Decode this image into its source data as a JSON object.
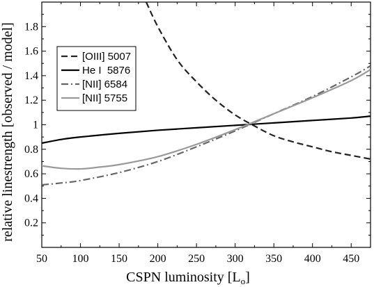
{
  "chart_data": {
    "type": "line",
    "title": "",
    "xlabel": "CSPN luminosity [L",
    "xlabel_sub": "o",
    "xlabel_end": "]",
    "ylabel": "relative linestrength [observed / model]",
    "xlim": [
      50,
      475
    ],
    "ylim": [
      0,
      2.0
    ],
    "xticks": [
      50,
      100,
      150,
      200,
      250,
      300,
      350,
      400,
      450
    ],
    "yticks": [
      0.2,
      0.4,
      0.6,
      0.8,
      1,
      1.2,
      1.4,
      1.6,
      1.8
    ],
    "ytick_labels": [
      "0.2",
      "0.4",
      "0.6",
      "0.8",
      "1",
      "1.2",
      "1.4",
      "1.6",
      "1.8"
    ],
    "grid": false,
    "legend_position": "upper-left",
    "series": [
      {
        "name": "[OIII] 5007",
        "color": "#222222",
        "dash": "dashed",
        "x": [
          185,
          200,
          225,
          250,
          275,
          300,
          325,
          350,
          375,
          400,
          425,
          450,
          475
        ],
        "y": [
          2.0,
          1.8,
          1.53,
          1.35,
          1.2,
          1.08,
          0.99,
          0.91,
          0.86,
          0.82,
          0.78,
          0.75,
          0.72
        ]
      },
      {
        "name": "He I  5876",
        "color": "#000000",
        "dash": "solid",
        "x": [
          50,
          75,
          100,
          150,
          200,
          250,
          300,
          350,
          400,
          450,
          475
        ],
        "y": [
          0.85,
          0.88,
          0.9,
          0.93,
          0.955,
          0.975,
          0.995,
          1.015,
          1.035,
          1.055,
          1.07
        ]
      },
      {
        "name": "[NII] 6584",
        "color": "#666666",
        "dash": "dashdot",
        "x": [
          50,
          75,
          100,
          150,
          200,
          250,
          300,
          350,
          400,
          450,
          475
        ],
        "y": [
          0.51,
          0.525,
          0.545,
          0.61,
          0.7,
          0.82,
          0.95,
          1.09,
          1.23,
          1.39,
          1.48
        ]
      },
      {
        "name": "[NII] 5755",
        "color": "#999999",
        "dash": "solid",
        "x": [
          50,
          75,
          100,
          125,
          150,
          200,
          250,
          300,
          350,
          400,
          450,
          475
        ],
        "y": [
          0.665,
          0.645,
          0.64,
          0.655,
          0.675,
          0.74,
          0.84,
          0.96,
          1.09,
          1.22,
          1.36,
          1.45
        ]
      }
    ]
  }
}
